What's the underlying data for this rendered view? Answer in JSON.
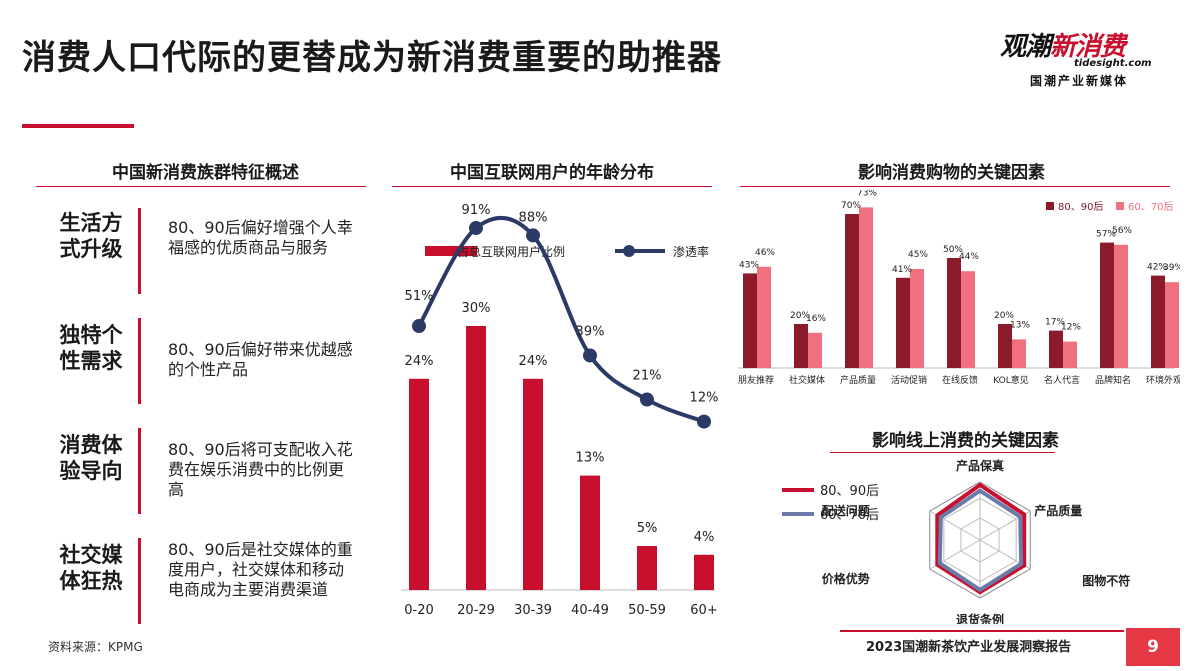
{
  "header": {
    "title": "消费人口代际的更替成为新消费重要的助推器",
    "logo_part1": "观潮",
    "logo_part2": "新消费",
    "logo_domain": "tidesight.com",
    "logo_tagline": "国潮产业新媒体"
  },
  "colors": {
    "accent": "#c8102e",
    "dark_red": "#8b1a2b",
    "pink": "#f07080",
    "navy": "#2b3a67",
    "slate": "#6b7aa8"
  },
  "section1": {
    "title": "中国新消费族群特征概述",
    "items": [
      {
        "tag": "生活方式升级",
        "desc": "80、90后偏好增强个人幸福感的优质商品与服务"
      },
      {
        "tag": "独特个性需求",
        "desc": "80、90后偏好带来优越感的个性产品"
      },
      {
        "tag": "消费体验导向",
        "desc": "80、90后将可支配收入花费在娱乐消费中的比例更高"
      },
      {
        "tag": "社交媒体狂热",
        "desc": "80、90后是社交媒体的重度用户，社交媒体和移动电商成为主要消费渠道"
      }
    ]
  },
  "chart_data": [
    {
      "type": "bar",
      "title": "中国互联网用户的年龄分布",
      "categories": [
        "0-20",
        "20-29",
        "30-39",
        "40-49",
        "50-59",
        "60+"
      ],
      "series": [
        {
          "name": "占总互联网用户比例",
          "type": "bar",
          "values": [
            24,
            30,
            24,
            13,
            5,
            4
          ],
          "labels": [
            "24%",
            "30%",
            "24%",
            "13%",
            "5%",
            "4%"
          ]
        },
        {
          "name": "渗透率",
          "type": "line",
          "values": [
            51,
            91,
            88,
            39,
            21,
            12
          ],
          "labels": [
            "51%",
            "91%",
            "88%",
            "39%",
            "21%",
            "12%"
          ]
        }
      ]
    },
    {
      "type": "bar",
      "title": "影响消费购物的关键因素",
      "categories": [
        "朋友推荐",
        "社交媒体",
        "产品质量",
        "活动促销",
        "在线反馈",
        "KOL意见",
        "名人代言",
        "品牌知名",
        "环境外观"
      ],
      "series": [
        {
          "name": "80、90后",
          "values": [
            43,
            20,
            70,
            41,
            50,
            20,
            17,
            57,
            42
          ],
          "labels": [
            "43%",
            "20%",
            "70%",
            "41%",
            "50%",
            "20%",
            "17%",
            "57%",
            "42%"
          ]
        },
        {
          "name": "60、70后",
          "values": [
            46,
            16,
            73,
            45,
            44,
            13,
            12,
            56,
            39
          ],
          "labels": [
            "46%",
            "16%",
            "73%",
            "45%",
            "44%",
            "13%",
            "12%",
            "56%",
            "39%"
          ]
        }
      ],
      "legend": "top-right"
    },
    {
      "type": "radar",
      "title": "影响线上消费的关键因素",
      "categories": [
        "产品保真",
        "产品质量",
        "图物不符",
        "退货条例",
        "价格优势",
        "配送问题"
      ],
      "series": [
        {
          "name": "80、90后",
          "values": [
            0.95,
            0.88,
            0.88,
            0.9,
            0.85,
            0.85
          ]
        },
        {
          "name": "60、70后",
          "values": [
            0.85,
            0.8,
            0.82,
            0.86,
            0.8,
            0.78
          ]
        }
      ],
      "legend": "left"
    }
  ],
  "footer": {
    "source": "资料来源：KPMG",
    "report": "2023国潮新茶饮产业发展洞察报告",
    "page": "9"
  }
}
